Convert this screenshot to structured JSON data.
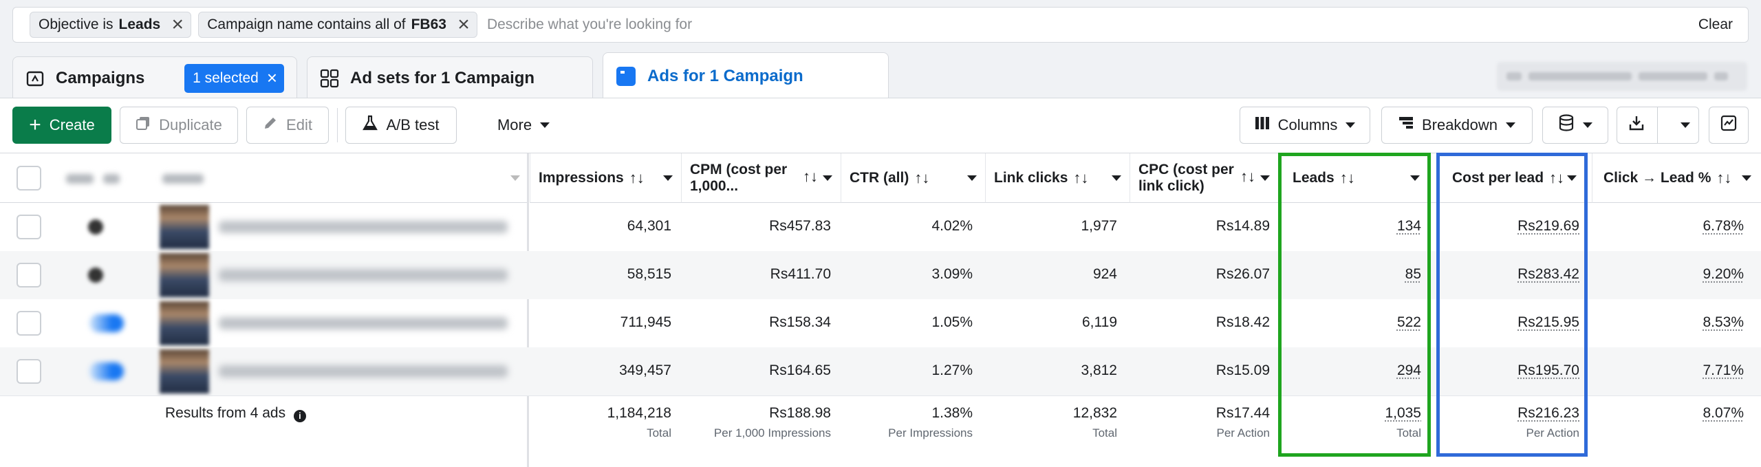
{
  "filters": {
    "chips": [
      {
        "label": "Objective is",
        "value": "Leads"
      },
      {
        "label": "Campaign name contains all of",
        "value": "FB63"
      }
    ],
    "placeholder": "Describe what you're looking for",
    "clear_label": "Clear"
  },
  "tabs": {
    "campaigns": {
      "label": "Campaigns",
      "selected_label": "1 selected"
    },
    "adsets": {
      "label": "Ad sets for 1 Campaign"
    },
    "ads": {
      "label": "Ads for 1 Campaign"
    }
  },
  "toolbar": {
    "create": "Create",
    "duplicate": "Duplicate",
    "edit": "Edit",
    "abtest": "A/B test",
    "more": "More",
    "columns": "Columns",
    "breakdown": "Breakdown"
  },
  "table": {
    "columns": {
      "impressions": "Impressions",
      "cpm_line1": "CPM (cost per",
      "cpm_line2": "1,000...",
      "ctr": "CTR (all)",
      "link_clicks": "Link clicks",
      "cpc_line1": "CPC (cost per",
      "cpc_line2": "link click)",
      "leads": "Leads",
      "cost_per_lead": "Cost per lead",
      "click_lead": "Click → Lead %"
    },
    "sort_glyph": "↑↓",
    "rows": [
      {
        "impressions": "64,301",
        "cpm": "Rs457.83",
        "ctr": "4.02%",
        "link_clicks": "1,977",
        "cpc": "Rs14.89",
        "leads": "134",
        "cost_per_lead": "Rs219.69",
        "click_lead": "6.78%"
      },
      {
        "impressions": "58,515",
        "cpm": "Rs411.70",
        "ctr": "3.09%",
        "link_clicks": "924",
        "cpc": "Rs26.07",
        "leads": "85",
        "cost_per_lead": "Rs283.42",
        "click_lead": "9.20%"
      },
      {
        "impressions": "711,945",
        "cpm": "Rs158.34",
        "ctr": "1.05%",
        "link_clicks": "6,119",
        "cpc": "Rs18.42",
        "leads": "522",
        "cost_per_lead": "Rs215.95",
        "click_lead": "8.53%"
      },
      {
        "impressions": "349,457",
        "cpm": "Rs164.65",
        "ctr": "1.27%",
        "link_clicks": "3,812",
        "cpc": "Rs15.09",
        "leads": "294",
        "cost_per_lead": "Rs195.70",
        "click_lead": "7.71%"
      }
    ],
    "summary": {
      "label": "Results from 4 ads",
      "impressions": "1,184,218",
      "impressions_sub": "Total",
      "cpm": "Rs188.98",
      "cpm_sub": "Per 1,000 Impressions",
      "ctr": "1.38%",
      "ctr_sub": "Per Impressions",
      "link_clicks": "12,832",
      "link_clicks_sub": "Total",
      "cpc": "Rs17.44",
      "cpc_sub": "Per Action",
      "leads": "1,035",
      "leads_sub": "Total",
      "cost_per_lead": "Rs216.23",
      "cost_per_lead_sub": "Per Action",
      "click_lead": "8.07%"
    }
  },
  "colors": {
    "highlight_leads": "#1fa51f",
    "highlight_cost_per_lead": "#2f6ad9",
    "primary": "#0a7c4a",
    "accent": "#1877f2"
  }
}
